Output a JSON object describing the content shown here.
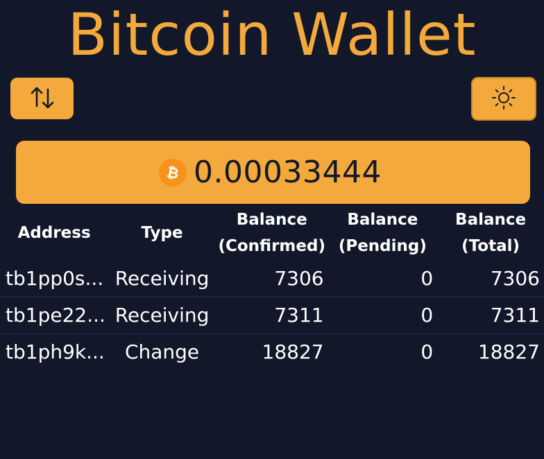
{
  "header": {
    "title": "Bitcoin Wallet"
  },
  "toolbar": {
    "swap_icon": "arrows-up-down-icon",
    "theme_icon": "sun-icon"
  },
  "balance": {
    "currency_icon": "bitcoin-icon",
    "value": "0.00033444"
  },
  "table": {
    "columns": [
      {
        "line1": "Address",
        "line2": ""
      },
      {
        "line1": "Type",
        "line2": ""
      },
      {
        "line1": "Balance",
        "line2": "(Confirmed)"
      },
      {
        "line1": "Balance",
        "line2": "(Pending)"
      },
      {
        "line1": "Balance",
        "line2": "(Total)"
      }
    ],
    "rows": [
      {
        "address": "tb1pp0s...",
        "type": "Receiving",
        "confirmed": "7306",
        "pending": "0",
        "total": "7306"
      },
      {
        "address": "tb1pe22...",
        "type": "Receiving",
        "confirmed": "7311",
        "pending": "0",
        "total": "7311"
      },
      {
        "address": "tb1ph9k...",
        "type": "Change",
        "confirmed": "18827",
        "pending": "0",
        "total": "18827"
      }
    ]
  },
  "colors": {
    "background": "#121829",
    "accent": "#f3a93c",
    "bitcoin": "#f7931a"
  }
}
